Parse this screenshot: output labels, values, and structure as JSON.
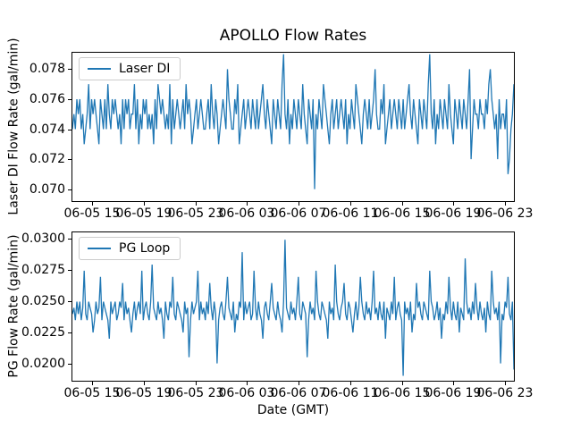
{
  "title": "APOLLO Flow Rates",
  "colors": {
    "line": "#1f77b4",
    "spine": "#000000",
    "legend_border": "#cccccc",
    "background": "#ffffff",
    "text": "#000000"
  },
  "chart_data": [
    {
      "type": "line",
      "name": "laser-di",
      "legend_label": "Laser DI",
      "legend_position": "upper-left",
      "ylabel": "Laser DI Flow Rate (gal/min)",
      "xlabel": "",
      "ylim": [
        0.0692,
        0.0791
      ],
      "yticks": [
        0.07,
        0.072,
        0.074,
        0.076,
        0.078
      ],
      "ytick_labels": [
        "0.070",
        "0.072",
        "0.074",
        "0.076",
        "0.078"
      ],
      "xlim": [
        13.4,
        47.75
      ],
      "xticks": [
        15,
        19,
        23,
        27,
        31,
        35,
        39,
        43,
        47
      ],
      "xtick_labels": [
        "06-05 15",
        "06-05 19",
        "06-05 23",
        "06-06 03",
        "06-06 07",
        "06-06 11",
        "06-06 15",
        "06-06 19",
        "06-06 23"
      ],
      "show_xtick_labels": true,
      "grid": false,
      "line_color": "#1f77b4",
      "series_encoding": {
        "description": "noisy quantized sensor trace; value = base + charset.indexOf(char) * step, gal/min",
        "base": 0.07,
        "step": 0.001,
        "charset": "0123456789"
      },
      "series": "454656453457465654365464754656545364656455746354656454536476565454736456545647565345645654456475465345654865446573456456546546456754654365465479546354654654754365460546547654356456456546354654765435654645685446573456456546546456754654365465479546354654654754365465465468246554655465786545264554612457"
    },
    {
      "type": "line",
      "name": "pg-loop",
      "legend_label": "PG Loop",
      "legend_position": "upper-left",
      "ylabel": "PG Flow Rate (gal/min)",
      "xlabel": "Date (GMT)",
      "ylim": [
        0.0186,
        0.0306
      ],
      "yticks": [
        0.02,
        0.0225,
        0.025,
        0.0275,
        0.03
      ],
      "ytick_labels": [
        "0.0200",
        "0.0225",
        "0.0250",
        "0.0275",
        "0.0300"
      ],
      "xlim": [
        13.4,
        47.75
      ],
      "xticks": [
        15,
        19,
        23,
        27,
        31,
        35,
        39,
        43,
        47
      ],
      "xtick_labels": [
        "06-05 15",
        "06-05 19",
        "06-05 23",
        "06-06 03",
        "06-06 07",
        "06-06 11",
        "06-06 15",
        "06-06 19",
        "06-06 23"
      ],
      "show_xtick_labels": true,
      "grid": false,
      "line_color": "#1f77b4",
      "series_encoding": {
        "description": "noisy quantized sensor trace; value = base + charset.indexOf(char) * step, gal/min",
        "base": 0.019,
        "step": 0.0005,
        "charset": "abcdefghijklmnopqrstuvw"
      },
      "series": "kljmkmjlrkjmlkhjmklqjmlkjgmklmjkmlpjmkljhkmjlmkrjlmkjmslkjmkljgmkjmlqkjmlkjhmkldjmklmrjmkljmkpljmkcjlmkjmqlkjmhkjmlujmklmjkrljmkjglmkjmplkjmkjhmwlkjmkljmqkjmlkdjmkljrmkjmlkjgmkljsmkjlmpkjmljhkmjlqmkjmkljmrkljmkjmglkjmkqjlmkjamkljmhkjplmkjmlkjrmljkmjlgkjmkqljmkjmhlkjtmkljmkpljmkjlhmkjrmkljmckjmlqkjmb"
    }
  ]
}
